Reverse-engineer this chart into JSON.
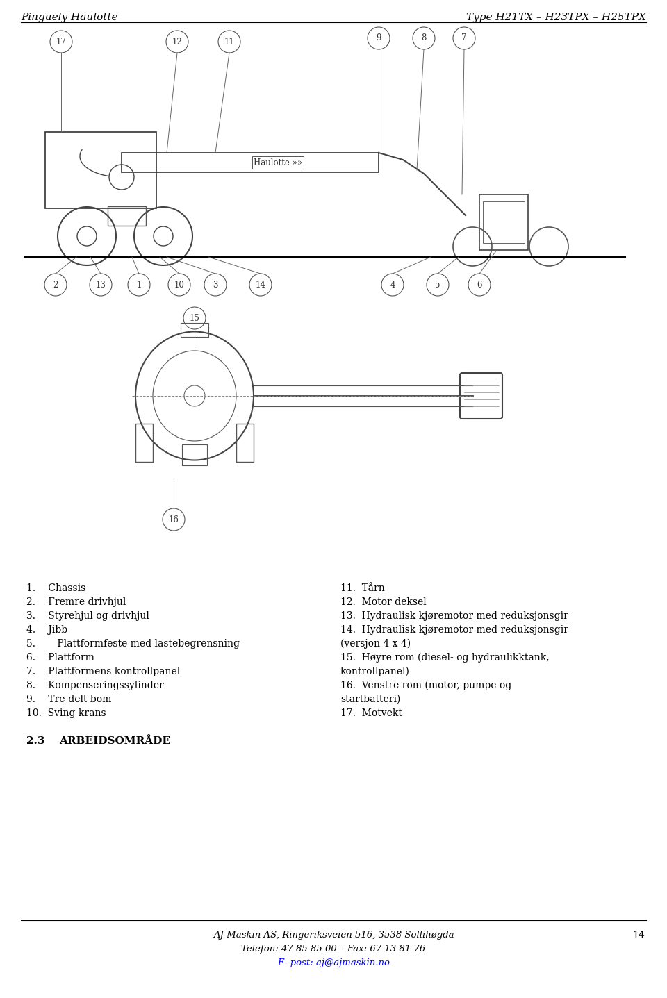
{
  "header_left": "Pinguely Haulotte",
  "header_right": "Type H21TX – H23TPX – H25TPX",
  "page_number": "14",
  "section_heading": "2.3    ARBEIDSOMRÅDE",
  "footer_line1": "AJ Maskin AS, Ringeriksveien 516, 3538 Sollihøgda",
  "footer_line2": "Telefon: 47 85 85 00 – Fax: 67 13 81 76",
  "footer_line3": "E- post: aj@ajmaskin.no",
  "list_left": [
    "1.  Chassis",
    "2.  Fremre drivhjul",
    "3.  Styrehjul og drivhjul",
    "4.  Jibb",
    "5.    Plattformfeste med lastebegrensning",
    "6.  Plattform",
    "7.  Plattformens kontrollpanel",
    "8.  Kompenseringssylinder",
    "9.  Tre-delt bom",
    "10. Sving krans"
  ],
  "list_right": [
    "11.  Tårn",
    "12.  Motor deksel",
    "13.  Hydraulisk kjøremotor med reduksjonsgir",
    "14.  Hydraulisk kjøremotor med reduksjonsgir\n        (versjon 4 x 4)",
    "15.  Høyre rom (diesel- og hydraulikktank,\n        kontrollpanel)",
    "16.  Venstre rom (motor, pumpe og\n        startbatteri)",
    "17.  Motvekt"
  ],
  "bg_color": "#ffffff",
  "text_color": "#000000",
  "header_fontsize": 11,
  "body_fontsize": 10.5,
  "section_fontsize": 11
}
